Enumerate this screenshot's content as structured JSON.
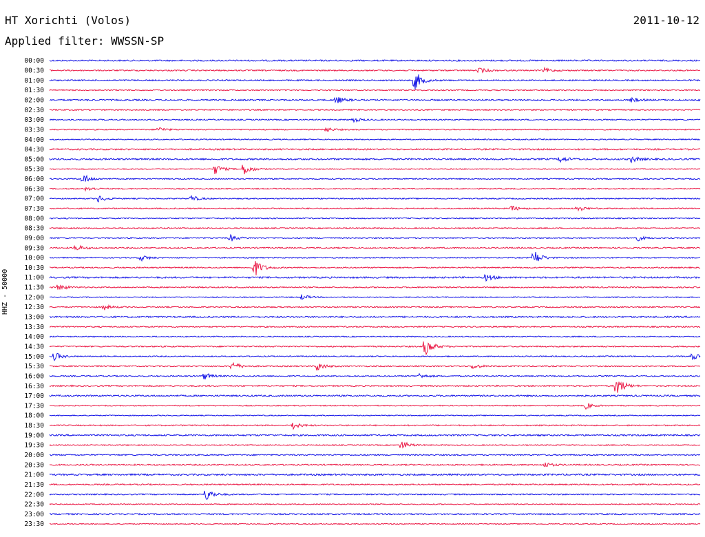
{
  "header": {
    "title": "HT Xorichti (Volos)",
    "date": "2011-10-12",
    "filter": "Applied filter: WWSSN-SP",
    "channel_label": "HHZ - 50000"
  },
  "colors": {
    "even_trace": "#1515e6",
    "odd_trace": "#ea1744",
    "text": "#000000",
    "background": "#ffffff"
  },
  "chart_data": {
    "type": "line",
    "title": "HT Xorichti (Volos)",
    "subtitle": "Applied filter: WWSSN-SP",
    "ylabel": "HHZ - 50000",
    "xlabel": "",
    "grid": false,
    "legend": "none",
    "x_unit": "minutes past row start",
    "xlim": [
      0,
      30
    ],
    "row_labels": [
      "00:00",
      "00:30",
      "01:00",
      "01:30",
      "02:00",
      "02:30",
      "03:00",
      "03:30",
      "04:00",
      "04:30",
      "05:00",
      "05:30",
      "06:00",
      "06:30",
      "07:00",
      "07:30",
      "08:00",
      "08:30",
      "09:00",
      "09:30",
      "10:00",
      "10:30",
      "11:00",
      "11:30",
      "12:00",
      "12:30",
      "13:00",
      "13:30",
      "14:00",
      "14:30",
      "15:00",
      "15:30",
      "16:00",
      "16:30",
      "17:00",
      "17:30",
      "18:00",
      "18:30",
      "19:00",
      "19:30",
      "20:00",
      "20:30",
      "21:00",
      "21:30",
      "22:00",
      "22:30",
      "23:00",
      "23:30"
    ],
    "events": [
      {
        "row": "01:00",
        "minute": 16.8,
        "amplitude": 1.0
      },
      {
        "row": "00:30",
        "minute": 19.8,
        "amplitude": 0.25
      },
      {
        "row": "00:30",
        "minute": 22.8,
        "amplitude": 0.2
      },
      {
        "row": "02:00",
        "minute": 13.2,
        "amplitude": 0.35
      },
      {
        "row": "02:00",
        "minute": 26.8,
        "amplitude": 0.2
      },
      {
        "row": "03:00",
        "minute": 14.0,
        "amplitude": 0.2
      },
      {
        "row": "03:30",
        "minute": 5.0,
        "amplitude": 0.25
      },
      {
        "row": "03:30",
        "minute": 12.7,
        "amplitude": 0.25
      },
      {
        "row": "05:00",
        "minute": 23.5,
        "amplitude": 0.3
      },
      {
        "row": "05:00",
        "minute": 26.8,
        "amplitude": 0.3
      },
      {
        "row": "05:30",
        "minute": 7.6,
        "amplitude": 0.5
      },
      {
        "row": "05:30",
        "minute": 8.9,
        "amplitude": 0.7
      },
      {
        "row": "06:00",
        "minute": 1.5,
        "amplitude": 0.5
      },
      {
        "row": "06:30",
        "minute": 1.7,
        "amplitude": 0.25
      },
      {
        "row": "07:00",
        "minute": 2.2,
        "amplitude": 0.35
      },
      {
        "row": "07:00",
        "minute": 6.5,
        "amplitude": 0.3
      },
      {
        "row": "07:30",
        "minute": 21.3,
        "amplitude": 0.25
      },
      {
        "row": "07:30",
        "minute": 24.3,
        "amplitude": 0.3
      },
      {
        "row": "09:00",
        "minute": 8.3,
        "amplitude": 0.35
      },
      {
        "row": "09:00",
        "minute": 27.0,
        "amplitude": 0.35
      },
      {
        "row": "09:30",
        "minute": 1.2,
        "amplitude": 0.3
      },
      {
        "row": "10:00",
        "minute": 22.3,
        "amplitude": 0.8
      },
      {
        "row": "10:00",
        "minute": 4.2,
        "amplitude": 0.3
      },
      {
        "row": "10:30",
        "minute": 9.4,
        "amplitude": 1.0
      },
      {
        "row": "11:00",
        "minute": 20.1,
        "amplitude": 0.35
      },
      {
        "row": "11:30",
        "minute": 0.4,
        "amplitude": 0.35
      },
      {
        "row": "12:00",
        "minute": 11.6,
        "amplitude": 0.25
      },
      {
        "row": "12:30",
        "minute": 2.5,
        "amplitude": 0.25
      },
      {
        "row": "14:30",
        "minute": 17.3,
        "amplitude": 0.9
      },
      {
        "row": "15:00",
        "minute": 0.2,
        "amplitude": 0.4
      },
      {
        "row": "15:00",
        "minute": 29.6,
        "amplitude": 0.35
      },
      {
        "row": "15:30",
        "minute": 8.4,
        "amplitude": 0.45
      },
      {
        "row": "15:30",
        "minute": 12.3,
        "amplitude": 0.45
      },
      {
        "row": "15:30",
        "minute": 19.5,
        "amplitude": 0.25
      },
      {
        "row": "16:00",
        "minute": 7.1,
        "amplitude": 0.35
      },
      {
        "row": "16:00",
        "minute": 17.0,
        "amplitude": 0.25
      },
      {
        "row": "16:30",
        "minute": 26.1,
        "amplitude": 1.0
      },
      {
        "row": "17:30",
        "minute": 24.7,
        "amplitude": 0.3
      },
      {
        "row": "18:30",
        "minute": 11.2,
        "amplitude": 0.35
      },
      {
        "row": "19:30",
        "minute": 16.2,
        "amplitude": 0.45
      },
      {
        "row": "20:30",
        "minute": 22.8,
        "amplitude": 0.25
      },
      {
        "row": "22:00",
        "minute": 7.2,
        "amplitude": 0.6
      }
    ]
  }
}
